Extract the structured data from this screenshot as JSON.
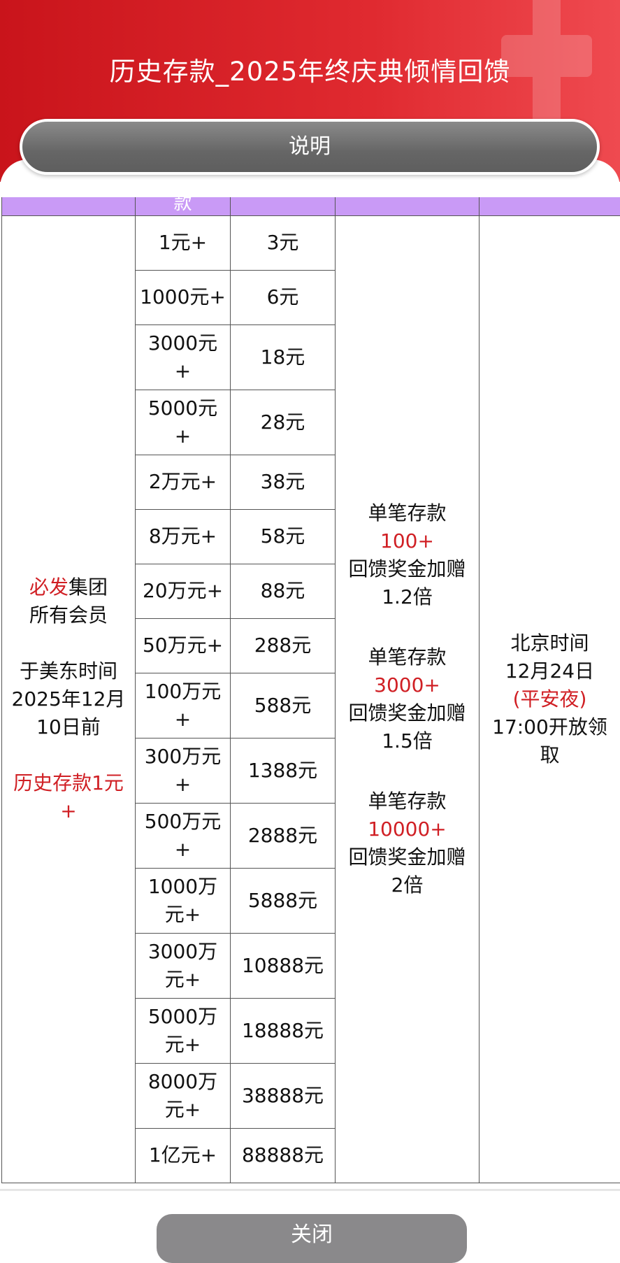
{
  "header": {
    "title": "历史存款_2025年终庆典倾情回馈",
    "explain_button": "说明"
  },
  "table": {
    "header_partial": "款",
    "eligibility": {
      "brand": "必发",
      "brand_suffix": "集团",
      "line2": "所有会员",
      "line3": "于美东时间\n2025年12月\n10日前",
      "line4": "历史存款1元\n+"
    },
    "rows": [
      {
        "deposit": "1元+",
        "reward": "3元"
      },
      {
        "deposit": "1000元+",
        "reward": "6元"
      },
      {
        "deposit": "3000元\n+",
        "reward": "18元"
      },
      {
        "deposit": "5000元\n+",
        "reward": "28元"
      },
      {
        "deposit": "2万元+",
        "reward": "38元"
      },
      {
        "deposit": "8万元+",
        "reward": "58元"
      },
      {
        "deposit": "20万元+",
        "reward": "88元"
      },
      {
        "deposit": "50万元+",
        "reward": "288元"
      },
      {
        "deposit": "100万元\n+",
        "reward": "588元"
      },
      {
        "deposit": "300万元\n+",
        "reward": "1388元"
      },
      {
        "deposit": "500万元\n+",
        "reward": "2888元"
      },
      {
        "deposit": "1000万\n元+",
        "reward": "5888元"
      },
      {
        "deposit": "3000万\n元+",
        "reward": "10888元"
      },
      {
        "deposit": "5000万\n元+",
        "reward": "18888元"
      },
      {
        "deposit": "8000万\n元+",
        "reward": "38888元"
      },
      {
        "deposit": "1亿元+",
        "reward": "88888元"
      }
    ],
    "bonus": [
      {
        "label": "单笔存款",
        "amount": "100+",
        "desc": "回馈奖金加赠\n1.2倍"
      },
      {
        "label": "单笔存款",
        "amount": "3000+",
        "desc": "回馈奖金加赠\n1.5倍"
      },
      {
        "label": "单笔存款",
        "amount": "10000+",
        "desc": "回馈奖金加赠\n2倍"
      }
    ],
    "claim": {
      "line1": "北京时间\n12月24日",
      "highlight": "(平安夜)",
      "line3": "17:00开放领\n取"
    }
  },
  "footer": {
    "close_button": "关闭"
  },
  "colors": {
    "accent_red": "#d01f24",
    "header_purple": "#c99af6",
    "button_gray": "#8a898b"
  }
}
